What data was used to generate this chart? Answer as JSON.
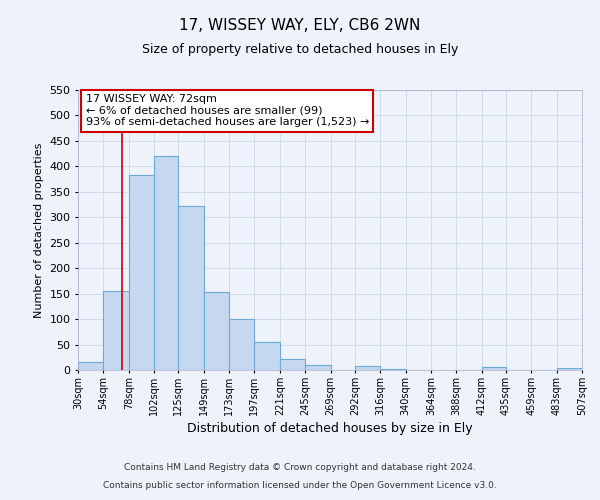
{
  "title": "17, WISSEY WAY, ELY, CB6 2WN",
  "subtitle": "Size of property relative to detached houses in Ely",
  "xlabel": "Distribution of detached houses by size in Ely",
  "ylabel": "Number of detached properties",
  "annotation_line1": "17 WISSEY WAY: 72sqm",
  "annotation_line2": "← 6% of detached houses are smaller (99)",
  "annotation_line3": "93% of semi-detached houses are larger (1,523) →",
  "property_size": 72,
  "bar_left_edges": [
    30,
    54,
    78,
    102,
    125,
    149,
    173,
    197,
    221,
    245,
    269,
    292,
    316,
    340,
    364,
    388,
    412,
    435,
    459,
    483
  ],
  "bar_widths": [
    24,
    24,
    24,
    23,
    24,
    24,
    24,
    24,
    24,
    24,
    23,
    24,
    24,
    24,
    24,
    24,
    23,
    24,
    24,
    24
  ],
  "bar_heights": [
    15,
    155,
    383,
    420,
    323,
    153,
    100,
    55,
    22,
    10,
    0,
    7,
    2,
    0,
    0,
    0,
    5,
    0,
    0,
    3
  ],
  "tick_labels": [
    "30sqm",
    "54sqm",
    "78sqm",
    "102sqm",
    "125sqm",
    "149sqm",
    "173sqm",
    "197sqm",
    "221sqm",
    "245sqm",
    "269sqm",
    "292sqm",
    "316sqm",
    "340sqm",
    "364sqm",
    "388sqm",
    "412sqm",
    "435sqm",
    "459sqm",
    "483sqm",
    "507sqm"
  ],
  "bar_color": "#c5d8f0",
  "bar_edge_color": "#6aaad4",
  "vline_color": "#cc0000",
  "annotation_box_edge_color": "#cc0000",
  "grid_color": "#c8d8ec",
  "background_color": "#eef2fa",
  "plot_bg_color": "#eef2fa",
  "ylim": [
    0,
    550
  ],
  "yticks": [
    0,
    50,
    100,
    150,
    200,
    250,
    300,
    350,
    400,
    450,
    500,
    550
  ],
  "footer1": "Contains HM Land Registry data © Crown copyright and database right 2024.",
  "footer2": "Contains public sector information licensed under the Open Government Licence v3.0."
}
